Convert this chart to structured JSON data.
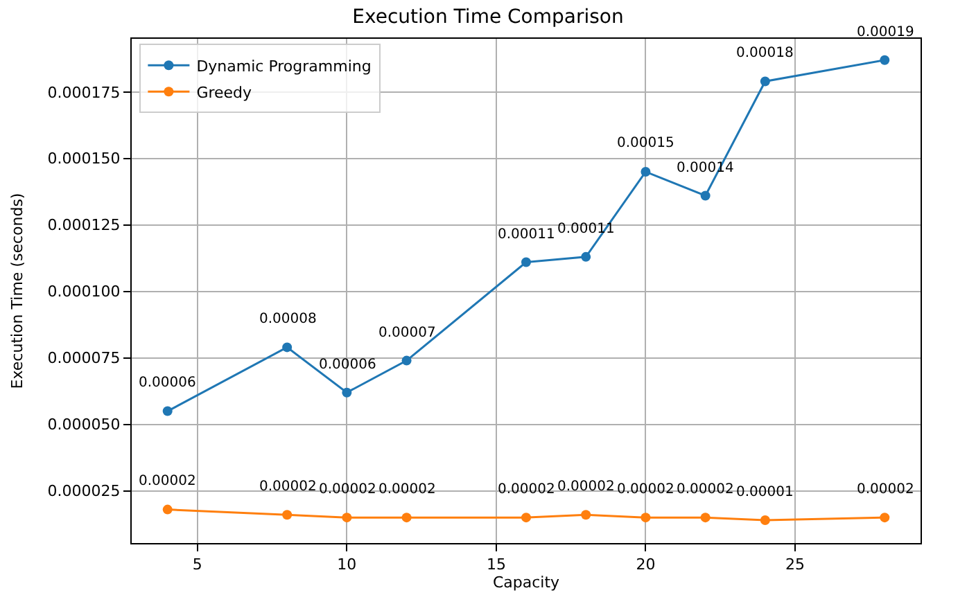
{
  "chart_data": {
    "type": "line",
    "title": "Execution Time Comparison",
    "xlabel": "Capacity",
    "ylabel": "Execution Time (seconds)",
    "x": [
      4,
      8,
      10,
      12,
      16,
      18,
      20,
      22,
      24,
      28
    ],
    "series": [
      {
        "name": "Dynamic Programming",
        "color": "#1f77b4",
        "values": [
          5.5e-05,
          7.9e-05,
          6.2e-05,
          7.4e-05,
          0.000111,
          0.000113,
          0.000145,
          0.000136,
          0.000179,
          0.000187
        ],
        "value_labels": [
          "0.00006",
          "0.00008",
          "0.00006",
          "0.00007",
          "0.00011",
          "0.00011",
          "0.00015",
          "0.00014",
          "0.00018",
          "0.00019"
        ]
      },
      {
        "name": "Greedy",
        "color": "#ff7f0e",
        "values": [
          1.8e-05,
          1.6e-05,
          1.5e-05,
          1.5e-05,
          1.5e-05,
          1.6e-05,
          1.5e-05,
          1.5e-05,
          1.4e-05,
          1.5e-05
        ],
        "value_labels": [
          "0.00002",
          "0.00002",
          "0.00002",
          "0.00002",
          "0.00002",
          "0.00002",
          "0.00002",
          "0.00002",
          "0.00001",
          "0.00002"
        ]
      }
    ],
    "xlim": [
      2.8,
      29.2
    ],
    "xticks": [
      5,
      10,
      15,
      20,
      25
    ],
    "ylim": [
      5.4e-06,
      0.000195
    ],
    "yticks": [
      {
        "value": 2.5e-05,
        "label": "0.000025"
      },
      {
        "value": 5e-05,
        "label": "0.000050"
      },
      {
        "value": 7.5e-05,
        "label": "0.000075"
      },
      {
        "value": 0.0001,
        "label": "0.000100"
      },
      {
        "value": 0.000125,
        "label": "0.000125"
      },
      {
        "value": 0.00015,
        "label": "0.000150"
      },
      {
        "value": 0.000175,
        "label": "0.000175"
      }
    ],
    "grid": true,
    "legend": "top left",
    "marker": "circle",
    "line_style": "solid"
  }
}
